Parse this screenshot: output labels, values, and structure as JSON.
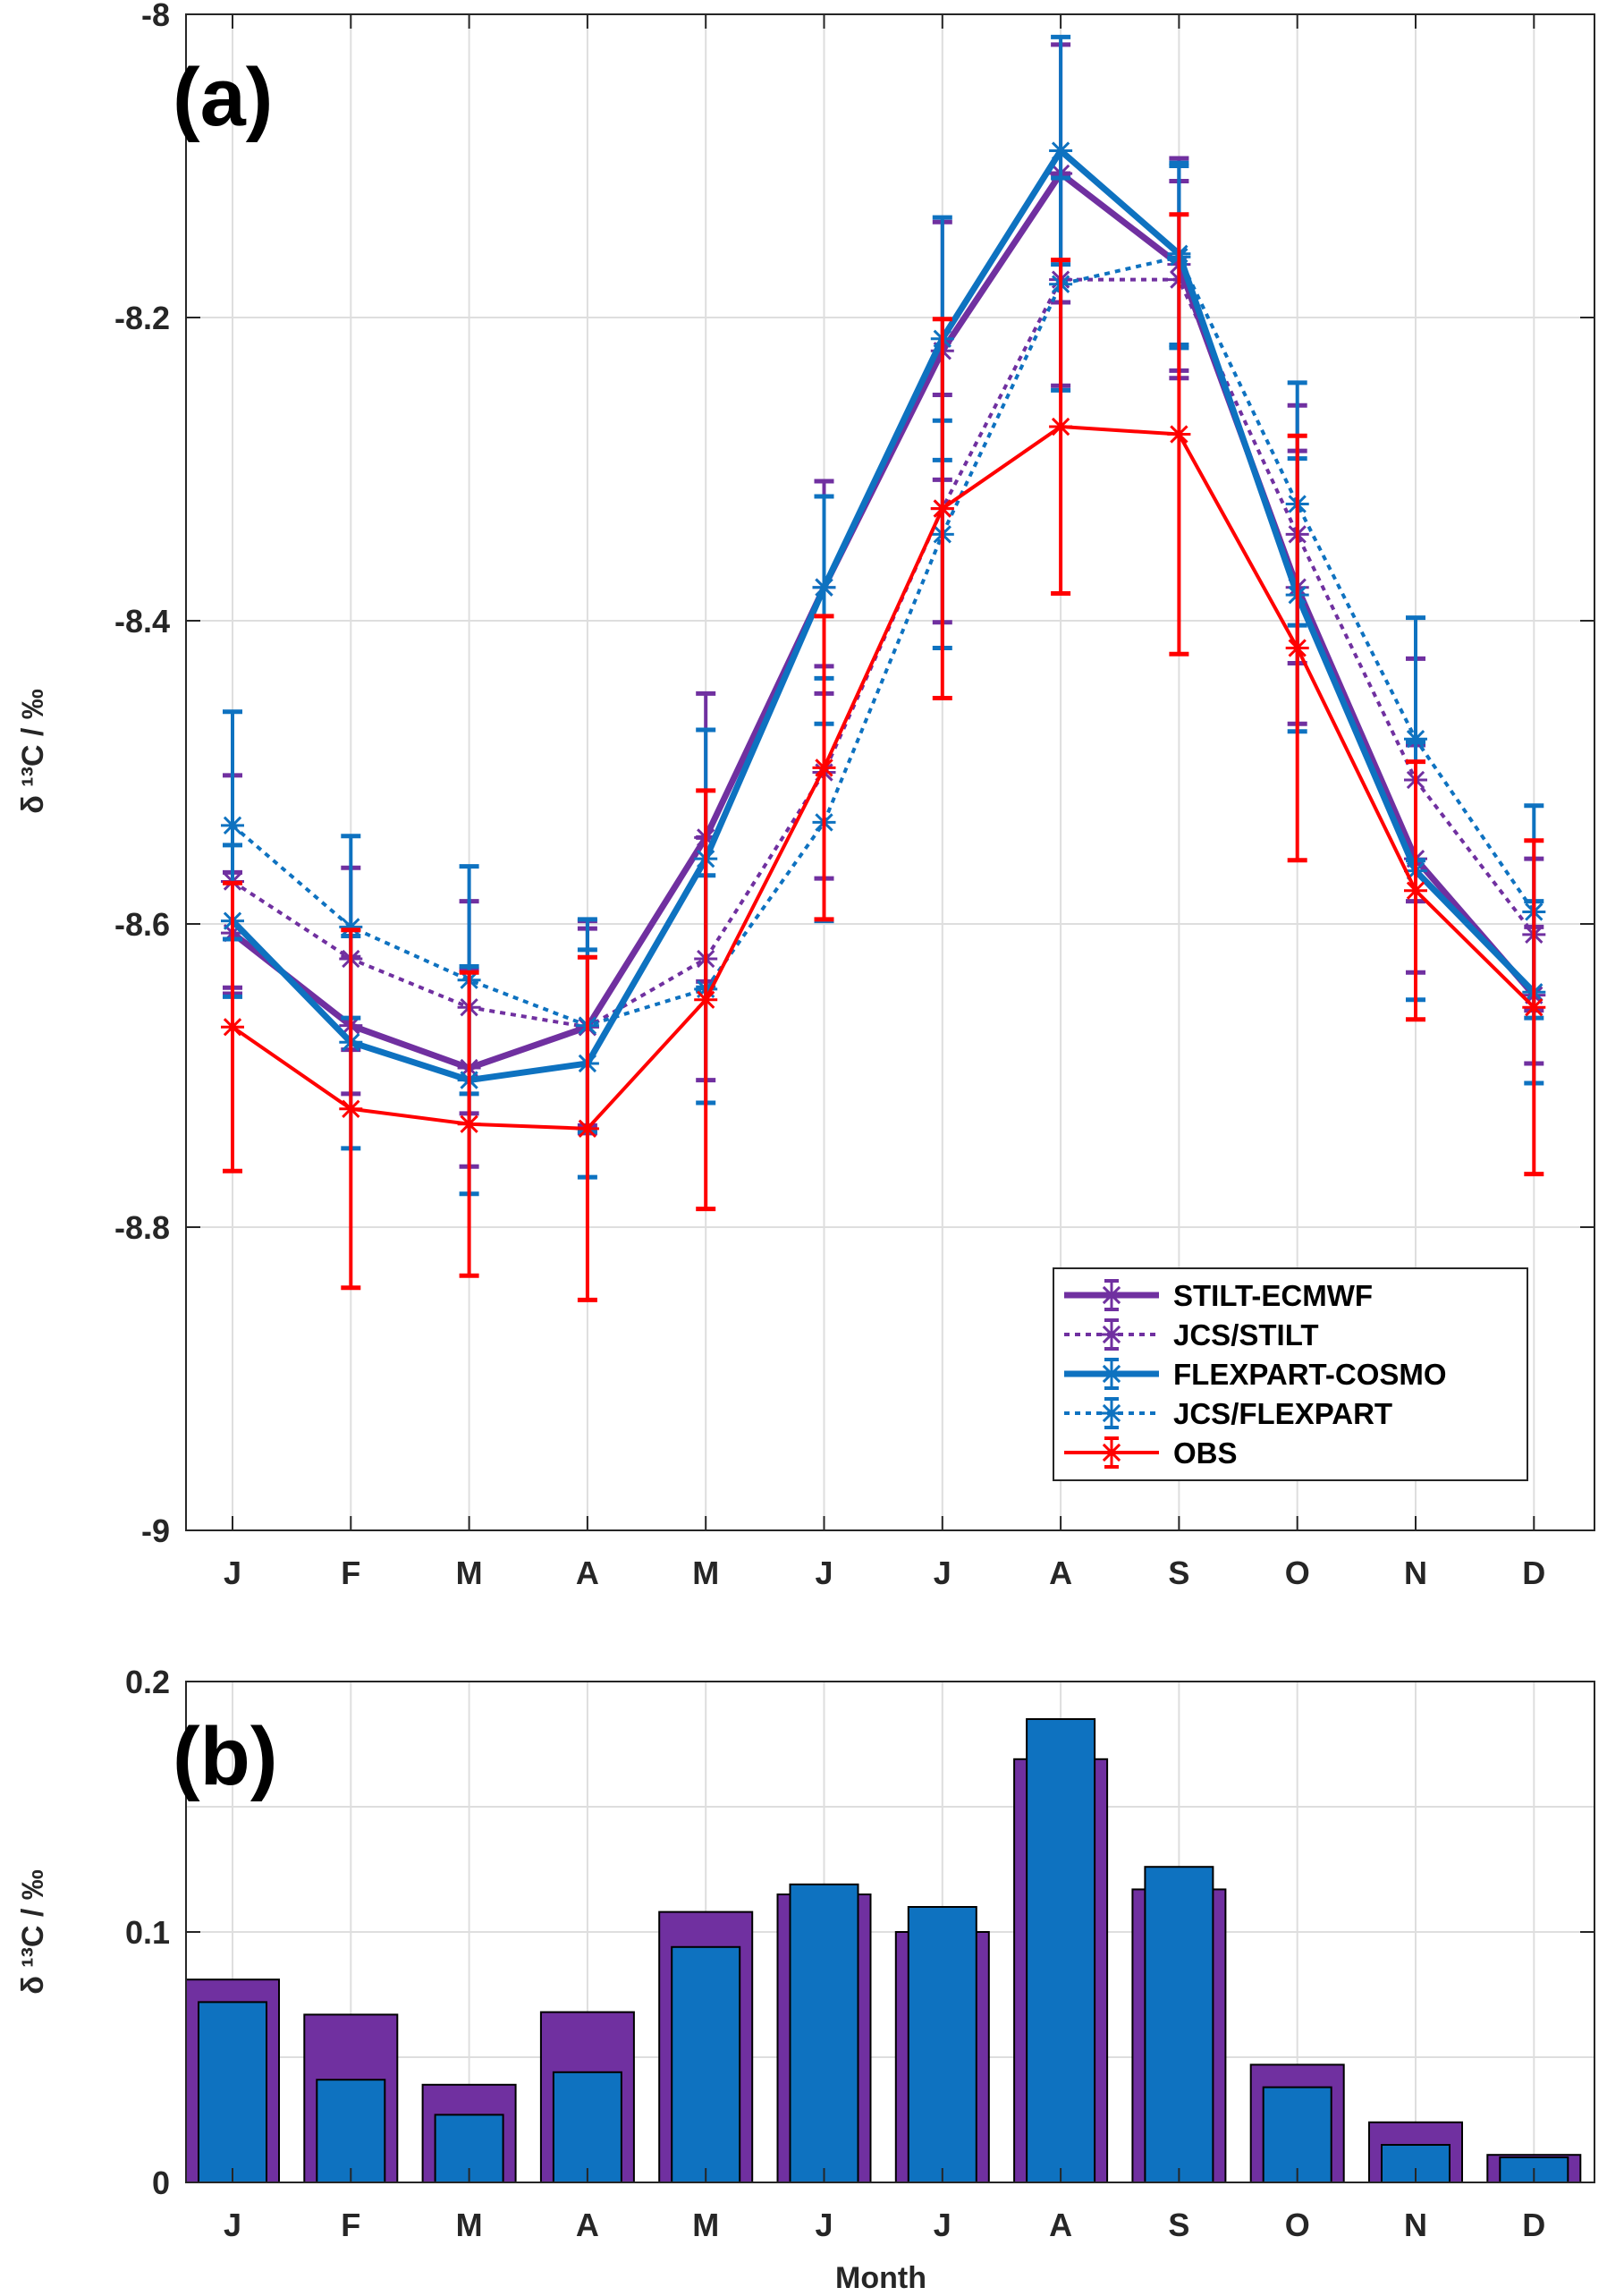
{
  "colors": {
    "stilt_ecmwf": "#7030a0",
    "jcs_stilt": "#7030a0",
    "flexpart_cosmo": "#0e72c0",
    "jcs_flexpart": "#0e72c0",
    "obs": "#ff0000",
    "bar_outer": "#7030a0",
    "bar_inner": "#0e72c0"
  },
  "chart_data": [
    {
      "panel": "(a)",
      "type": "line",
      "ylabel": "δ ¹³C / ‰",
      "xlabel": "",
      "categories": [
        "J",
        "F",
        "M",
        "A",
        "M",
        "J",
        "J",
        "A",
        "S",
        "O",
        "N",
        "D"
      ],
      "ylim": [
        -9,
        -8
      ],
      "yticks": [
        "-9",
        "-8.8",
        "-8.6",
        "-8.4",
        "-8.2",
        "-8"
      ],
      "grid": true,
      "legend_position": "bottom-right",
      "series": [
        {
          "name": "STILT-ECMWF",
          "style": "solid",
          "values": [
            -8.606,
            -8.667,
            -8.695,
            -8.668,
            -8.543,
            -8.378,
            -8.222,
            -8.105,
            -8.165,
            -8.378,
            -8.557,
            -8.647
          ],
          "errors": [
            0.04,
            0.045,
            0.065,
            0.065,
            0.095,
            0.07,
            0.085,
            0.085,
            0.07,
            0.09,
            0.075,
            0.045
          ]
        },
        {
          "name": "JCS/STILT",
          "style": "dotted",
          "values": [
            -8.572,
            -8.623,
            -8.655,
            -8.668,
            -8.623,
            -8.5,
            -8.326,
            -8.175,
            -8.175,
            -8.343,
            -8.505,
            -8.607
          ],
          "errors": [
            0.07,
            0.06,
            0.07,
            0.07,
            0.08,
            0.07,
            0.075,
            0.07,
            0.065,
            0.085,
            0.08,
            0.05
          ]
        },
        {
          "name": "FLEXPART-COSMO",
          "style": "solid",
          "values": [
            -8.598,
            -8.678,
            -8.703,
            -8.692,
            -8.557,
            -8.378,
            -8.214,
            -8.09,
            -8.158,
            -8.383,
            -8.565,
            -8.645
          ],
          "errors": [
            0.05,
            0.07,
            0.075,
            0.075,
            0.085,
            0.06,
            0.08,
            0.075,
            0.06,
            0.09,
            0.085,
            0.06
          ]
        },
        {
          "name": "JCS/FLEXPART",
          "style": "dotted",
          "values": [
            -8.535,
            -8.602,
            -8.637,
            -8.667,
            -8.643,
            -8.533,
            -8.343,
            -8.178,
            -8.16,
            -8.323,
            -8.478,
            -8.592
          ],
          "errors": [
            0.075,
            0.06,
            0.075,
            0.07,
            0.075,
            0.065,
            0.075,
            0.07,
            0.06,
            0.08,
            0.08,
            0.07
          ]
        },
        {
          "name": "OBS",
          "style": "solid",
          "values": [
            -8.668,
            -8.722,
            -8.732,
            -8.735,
            -8.65,
            -8.497,
            -8.326,
            -8.272,
            -8.277,
            -8.418,
            -8.578,
            -8.655
          ],
          "errors": [
            0.095,
            0.118,
            0.1,
            0.113,
            0.138,
            0.1,
            0.125,
            0.11,
            0.145,
            0.14,
            0.085,
            0.11
          ]
        }
      ]
    },
    {
      "panel": "(b)",
      "type": "bar",
      "ylabel": "δ ¹³C / ‰",
      "xlabel": "Month",
      "categories": [
        "J",
        "F",
        "M",
        "A",
        "M",
        "J",
        "J",
        "A",
        "S",
        "O",
        "N",
        "D"
      ],
      "ylim": [
        0,
        0.2
      ],
      "yticks": [
        "0",
        "0.1",
        "0.2"
      ],
      "grid": true,
      "series": [
        {
          "values": [
            0.081,
            0.067,
            0.039,
            0.068,
            0.108,
            0.115,
            0.1,
            0.169,
            0.117,
            0.047,
            0.024,
            0.011
          ]
        },
        {
          "values": [
            0.072,
            0.041,
            0.027,
            0.044,
            0.094,
            0.119,
            0.11,
            0.185,
            0.126,
            0.038,
            0.015,
            0.01
          ]
        }
      ]
    }
  ]
}
